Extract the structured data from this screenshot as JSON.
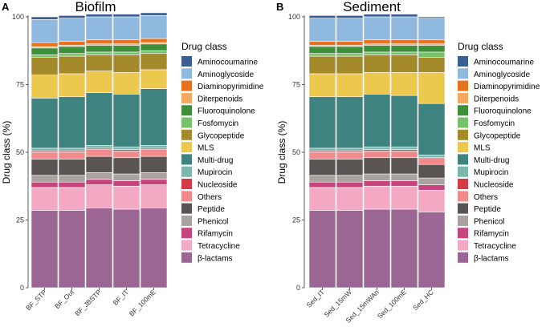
{
  "chart_data": [
    {
      "type": "bar",
      "stacked": true,
      "panel_label": "A",
      "title": "Biofilm",
      "xlabel": "",
      "ylabel": "Drug class (%)",
      "ylim": [
        0,
        100
      ],
      "yticks": [
        0,
        25,
        50,
        75,
        100
      ],
      "categories": [
        "BF_STP",
        "BF_Out",
        "BF_JBSTP",
        "BF_IT",
        "BF_100mE"
      ],
      "series": [
        {
          "name": "β-lactams",
          "values": [
            28.5,
            28.5,
            29.5,
            29,
            29.5
          ]
        },
        {
          "name": "Tetracycline",
          "values": [
            8.5,
            8.5,
            8.5,
            8.5,
            8.5
          ]
        },
        {
          "name": "Rifamycin",
          "values": [
            2,
            2,
            2,
            2,
            2
          ]
        },
        {
          "name": "Phenicol",
          "values": [
            2.5,
            2.5,
            2.5,
            2.5,
            2.5
          ]
        },
        {
          "name": "Peptide",
          "values": [
            6,
            6,
            6,
            6,
            6
          ]
        },
        {
          "name": "Others",
          "values": [
            2.5,
            2.5,
            2.5,
            2.5,
            2.5
          ]
        },
        {
          "name": "Nucleoside",
          "values": [
            0.5,
            0.5,
            0.5,
            0.5,
            0.5
          ]
        },
        {
          "name": "Mupirocin",
          "values": [
            1,
            1,
            1,
            1,
            1
          ]
        },
        {
          "name": "Multi-drug",
          "values": [
            18.5,
            19,
            19.5,
            19.5,
            21
          ]
        },
        {
          "name": "MLS",
          "values": [
            8.5,
            8.5,
            8,
            8,
            7
          ]
        },
        {
          "name": "Glycopeptide",
          "values": [
            6.5,
            6.5,
            6,
            6.5,
            6
          ]
        },
        {
          "name": "Fosfomycin",
          "values": [
            1,
            1,
            1,
            1,
            1
          ]
        },
        {
          "name": "Fluoroquinolone",
          "values": [
            2.5,
            2.5,
            2.5,
            2.5,
            2.5
          ]
        },
        {
          "name": "Diterpenoids",
          "values": [
            0.5,
            0.5,
            0.5,
            0.5,
            0.5
          ]
        },
        {
          "name": "Diaminopyrimidine",
          "values": [
            1.5,
            1.5,
            1.5,
            1.5,
            1.5
          ]
        },
        {
          "name": "Aminoglycoside",
          "values": [
            8.5,
            8.5,
            8.5,
            8.5,
            8.5
          ]
        },
        {
          "name": "Aminocoumarine",
          "values": [
            1,
            1,
            1,
            1,
            1
          ]
        }
      ]
    },
    {
      "type": "bar",
      "stacked": true,
      "panel_label": "B",
      "title": "Sediment",
      "xlabel": "",
      "ylabel": "Drug class (%)",
      "ylim": [
        0,
        100
      ],
      "yticks": [
        0,
        25,
        50,
        75,
        100
      ],
      "categories": [
        "Sed_IT",
        "Sed_15mW",
        "Sed_15mWAn",
        "Sed_100mE",
        "Sed_HC"
      ],
      "series": [
        {
          "name": "β-lactams",
          "values": [
            28.5,
            28.5,
            29,
            29,
            28
          ]
        },
        {
          "name": "Tetracycline",
          "values": [
            8.5,
            8.5,
            8.5,
            8.5,
            8
          ]
        },
        {
          "name": "Rifamycin",
          "values": [
            2,
            2,
            2,
            2,
            2
          ]
        },
        {
          "name": "Phenicol",
          "values": [
            2.5,
            2.5,
            2.5,
            2.5,
            2.5
          ]
        },
        {
          "name": "Peptide",
          "values": [
            6,
            6,
            6,
            6,
            5
          ]
        },
        {
          "name": "Others",
          "values": [
            2.5,
            2.5,
            2.5,
            2.5,
            2.5
          ]
        },
        {
          "name": "Nucleoside",
          "values": [
            0.5,
            0.5,
            0.5,
            0.5,
            0
          ]
        },
        {
          "name": "Mupirocin",
          "values": [
            1,
            1,
            1,
            1,
            1
          ]
        },
        {
          "name": "Multi-drug",
          "values": [
            19,
            19,
            19.5,
            19,
            19
          ]
        },
        {
          "name": "MLS",
          "values": [
            8.5,
            8.5,
            8,
            8.5,
            11.5
          ]
        },
        {
          "name": "Glycopeptide",
          "values": [
            6.5,
            6.5,
            6.5,
            6.5,
            5.5
          ]
        },
        {
          "name": "Fosfomycin",
          "values": [
            1,
            1,
            1,
            1,
            2
          ]
        },
        {
          "name": "Fluoroquinolone",
          "values": [
            2.5,
            2.5,
            2.5,
            2.5,
            2.5
          ]
        },
        {
          "name": "Diterpenoids",
          "values": [
            0.5,
            0.5,
            0.5,
            0.5,
            0.5
          ]
        },
        {
          "name": "Diaminopyrimidine",
          "values": [
            1.5,
            1.5,
            1.5,
            1.5,
            1.5
          ]
        },
        {
          "name": "Aminoglycoside",
          "values": [
            8.5,
            8.5,
            8.5,
            8.5,
            8
          ]
        },
        {
          "name": "Aminocoumarine",
          "values": [
            1,
            1,
            1,
            1,
            0.5
          ]
        }
      ]
    }
  ],
  "legend": {
    "title": "Drug class",
    "entries": [
      {
        "label": "Aminocoumarine",
        "color": "#3b5f91"
      },
      {
        "label": "Aminoglycoside",
        "color": "#8fb9df"
      },
      {
        "label": "Diaminopyrimidine",
        "color": "#e8731f"
      },
      {
        "label": "Diterpenoids",
        "color": "#f5a860"
      },
      {
        "label": "Fluoroquinolone",
        "color": "#3d8f3a"
      },
      {
        "label": "Fosfomycin",
        "color": "#77c26a"
      },
      {
        "label": "Glycopeptide",
        "color": "#a48a2a"
      },
      {
        "label": "MLS",
        "color": "#ecc84e"
      },
      {
        "label": "Multi-drug",
        "color": "#3e837f"
      },
      {
        "label": "Mupirocin",
        "color": "#7cb6ad"
      },
      {
        "label": "Nucleoside",
        "color": "#d63a44"
      },
      {
        "label": "Others",
        "color": "#f28a8c"
      },
      {
        "label": "Peptide",
        "color": "#5a5553"
      },
      {
        "label": "Phenicol",
        "color": "#aaa29f"
      },
      {
        "label": "Rifamycin",
        "color": "#c7457c"
      },
      {
        "label": "Tetracycline",
        "color": "#f3a8c4"
      },
      {
        "label": "β-lactams",
        "color": "#9b6594"
      }
    ]
  }
}
